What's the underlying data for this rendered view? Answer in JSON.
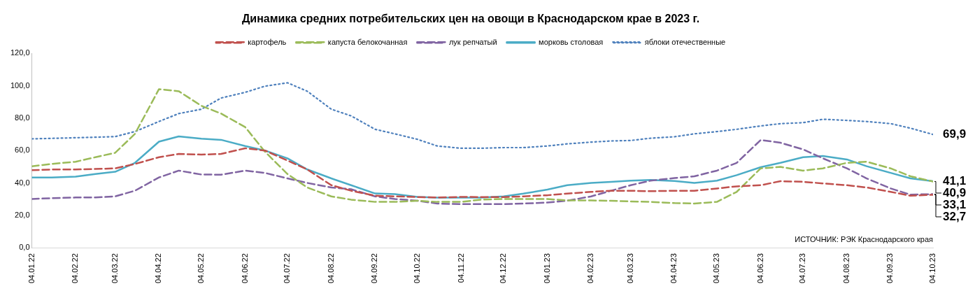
{
  "chart_data": {
    "type": "line",
    "title": "Динамика средних потребительских цен на овощи в Краснодарском крае в 2023 г.",
    "x": [
      "2022-01-04",
      "2022-01-18",
      "2022-02-04",
      "2022-02-18",
      "2022-03-04",
      "2022-03-18",
      "2022-04-04",
      "2022-04-18",
      "2022-05-04",
      "2022-05-18",
      "2022-06-04",
      "2022-06-18",
      "2022-07-04",
      "2022-07-18",
      "2022-08-04",
      "2022-08-18",
      "2022-09-04",
      "2022-09-18",
      "2022-10-04",
      "2022-10-18",
      "2022-11-04",
      "2022-11-18",
      "2022-12-04",
      "2022-12-18",
      "2023-01-04",
      "2023-01-18",
      "2023-02-04",
      "2023-02-18",
      "2023-03-04",
      "2023-03-18",
      "2023-04-04",
      "2023-04-18",
      "2023-05-04",
      "2023-05-18",
      "2023-06-04",
      "2023-06-18",
      "2023-07-04",
      "2023-07-18",
      "2023-08-04",
      "2023-08-18",
      "2023-09-04",
      "2023-09-18",
      "2023-10-04"
    ],
    "series": [
      {
        "name": "картофель",
        "color": "#c0504d",
        "line_style": "dashed",
        "values": [
          47.9,
          48.3,
          48.3,
          48.6,
          49.0,
          51.7,
          55.9,
          57.9,
          57.5,
          57.9,
          61.4,
          60.0,
          53.8,
          48.3,
          38.6,
          35.2,
          32.1,
          31.7,
          31.3,
          31.0,
          31.4,
          31.3,
          31.3,
          31.7,
          32.4,
          33.4,
          34.5,
          35.2,
          35.2,
          34.9,
          35.2,
          35.2,
          36.6,
          37.9,
          38.6,
          41.1,
          40.7,
          39.7,
          38.6,
          37.2,
          34.5,
          32.1,
          32.7
        ],
        "value_labels": [
          null,
          null,
          null,
          null,
          null,
          null,
          null,
          null,
          null,
          null,
          null,
          null,
          null,
          null,
          null,
          null,
          null,
          null,
          null,
          null,
          null,
          null,
          null,
          null,
          null,
          null,
          null,
          null,
          null,
          null,
          null,
          null,
          null,
          null,
          null,
          null,
          null,
          null,
          null,
          null,
          null,
          null,
          "32,7"
        ]
      },
      {
        "name": "капуста белокочанная",
        "color": "#9bbb59",
        "line_style": "dashed",
        "values": [
          50.3,
          51.7,
          53.1,
          55.9,
          58.6,
          70.3,
          97.9,
          96.6,
          87.6,
          82.8,
          74.5,
          59.3,
          45.5,
          37.2,
          31.7,
          29.7,
          28.3,
          28.3,
          29.0,
          28.3,
          28.3,
          29.7,
          30.1,
          30.1,
          30.1,
          29.2,
          29.2,
          29.0,
          28.6,
          28.3,
          27.6,
          27.3,
          28.3,
          34.5,
          49.0,
          49.9,
          47.6,
          49.0,
          52.4,
          53.1,
          49.0,
          44.1,
          40.9
        ],
        "value_labels": [
          null,
          null,
          null,
          null,
          null,
          null,
          null,
          null,
          null,
          null,
          null,
          null,
          null,
          null,
          null,
          null,
          null,
          null,
          null,
          null,
          null,
          null,
          null,
          null,
          null,
          null,
          null,
          null,
          null,
          null,
          null,
          null,
          null,
          null,
          null,
          null,
          null,
          null,
          null,
          null,
          null,
          null,
          "40,9"
        ]
      },
      {
        "name": "лук репчатый",
        "color": "#8064a2",
        "line_style": "dashed",
        "values": [
          30.1,
          30.6,
          31.0,
          31.0,
          31.7,
          35.2,
          43.4,
          47.6,
          45.2,
          45.1,
          47.6,
          46.2,
          42.8,
          40.0,
          37.2,
          36.1,
          31.7,
          30.1,
          29.0,
          27.3,
          26.9,
          26.9,
          26.9,
          27.3,
          27.9,
          29.0,
          31.7,
          35.2,
          38.6,
          41.4,
          43.0,
          44.1,
          47.6,
          52.4,
          66.5,
          64.8,
          60.7,
          55.2,
          49.0,
          42.8,
          36.6,
          32.8,
          33.1
        ],
        "value_labels": [
          null,
          null,
          null,
          null,
          null,
          null,
          null,
          null,
          null,
          null,
          null,
          null,
          null,
          null,
          null,
          null,
          null,
          null,
          null,
          null,
          null,
          null,
          null,
          null,
          null,
          null,
          null,
          null,
          null,
          null,
          null,
          null,
          null,
          null,
          null,
          null,
          null,
          null,
          null,
          null,
          null,
          null,
          "33,1"
        ]
      },
      {
        "name": "морковь столовая",
        "color": "#4bacc6",
        "line_style": "solid",
        "values": [
          43.4,
          43.4,
          43.9,
          45.5,
          46.9,
          52.4,
          65.5,
          68.7,
          67.3,
          66.6,
          62.8,
          60.0,
          55.2,
          48.3,
          42.8,
          38.6,
          33.5,
          33.1,
          31.4,
          30.9,
          30.9,
          30.9,
          31.7,
          33.4,
          35.9,
          38.6,
          40.0,
          40.7,
          41.4,
          41.8,
          41.2,
          40.0,
          41.4,
          44.8,
          49.7,
          52.4,
          55.9,
          56.6,
          54.5,
          50.3,
          46.2,
          42.8,
          41.1
        ],
        "value_labels": [
          null,
          null,
          null,
          null,
          null,
          null,
          null,
          null,
          null,
          null,
          null,
          null,
          null,
          null,
          null,
          null,
          null,
          null,
          null,
          null,
          null,
          null,
          null,
          null,
          null,
          null,
          null,
          null,
          null,
          null,
          null,
          null,
          null,
          null,
          null,
          null,
          null,
          null,
          null,
          null,
          null,
          null,
          "41,1"
        ]
      },
      {
        "name": "яблоки отечественные",
        "color": "#4f81bd",
        "line_style": "dotted",
        "values": [
          67.2,
          67.5,
          67.9,
          68.2,
          68.6,
          71.7,
          77.9,
          82.8,
          85.5,
          92.4,
          95.9,
          99.7,
          101.8,
          96.6,
          85.5,
          81.4,
          73.1,
          70.3,
          66.9,
          62.8,
          61.4,
          61.4,
          61.8,
          61.8,
          62.8,
          64.1,
          65.2,
          65.9,
          66.2,
          67.6,
          68.5,
          70.3,
          71.7,
          73.1,
          75.2,
          76.6,
          77.2,
          79.3,
          78.6,
          77.9,
          76.6,
          73.8,
          69.9
        ],
        "value_labels": [
          null,
          null,
          null,
          null,
          null,
          null,
          null,
          null,
          null,
          null,
          null,
          null,
          null,
          null,
          null,
          null,
          null,
          null,
          null,
          null,
          null,
          null,
          null,
          null,
          null,
          null,
          null,
          null,
          null,
          null,
          null,
          null,
          null,
          null,
          null,
          null,
          null,
          null,
          null,
          null,
          null,
          null,
          "69,9"
        ]
      }
    ],
    "ylim": [
      0,
      120
    ],
    "yticks": [
      {
        "value": 0,
        "label": "0,0"
      },
      {
        "value": 20,
        "label": "20,0"
      },
      {
        "value": 40,
        "label": "40,0"
      },
      {
        "value": 60,
        "label": "60,0"
      },
      {
        "value": 80,
        "label": "80,0"
      },
      {
        "value": 100,
        "label": "100,0"
      },
      {
        "value": 120,
        "label": "120,0"
      }
    ],
    "xlim": [
      "2022-01-04",
      "2023-10-04"
    ],
    "xticks": [
      {
        "value": "2022-01-04",
        "label": "04.01.22"
      },
      {
        "value": "2022-02-04",
        "label": "04.02.22"
      },
      {
        "value": "2022-03-04",
        "label": "04.03.22"
      },
      {
        "value": "2022-04-04",
        "label": "04.04.22"
      },
      {
        "value": "2022-05-04",
        "label": "04.05.22"
      },
      {
        "value": "2022-06-04",
        "label": "04.06.22"
      },
      {
        "value": "2022-07-04",
        "label": "04.07.22"
      },
      {
        "value": "2022-08-04",
        "label": "04.08.22"
      },
      {
        "value": "2022-09-04",
        "label": "04.09.22"
      },
      {
        "value": "2022-10-04",
        "label": "04.10.22"
      },
      {
        "value": "2022-11-04",
        "label": "04.11.22"
      },
      {
        "value": "2022-12-04",
        "label": "04.12.22"
      },
      {
        "value": "2023-01-04",
        "label": "04.01.23"
      },
      {
        "value": "2023-02-04",
        "label": "04.02.23"
      },
      {
        "value": "2023-03-04",
        "label": "04.03.23"
      },
      {
        "value": "2023-04-04",
        "label": "04.04.23"
      },
      {
        "value": "2023-05-04",
        "label": "04.05.23"
      },
      {
        "value": "2023-06-04",
        "label": "04.06.23"
      },
      {
        "value": "2023-07-04",
        "label": "04.07.23"
      },
      {
        "value": "2023-08-04",
        "label": "04.08.23"
      },
      {
        "value": "2023-09-04",
        "label": "04.09.23"
      },
      {
        "value": "2023-10-04",
        "label": "04.10.23"
      }
    ],
    "grid": false,
    "legend": "top",
    "marker": "none",
    "annotations": [
      "ИСТОЧНИК: РЭК Краснодарского края"
    ]
  }
}
